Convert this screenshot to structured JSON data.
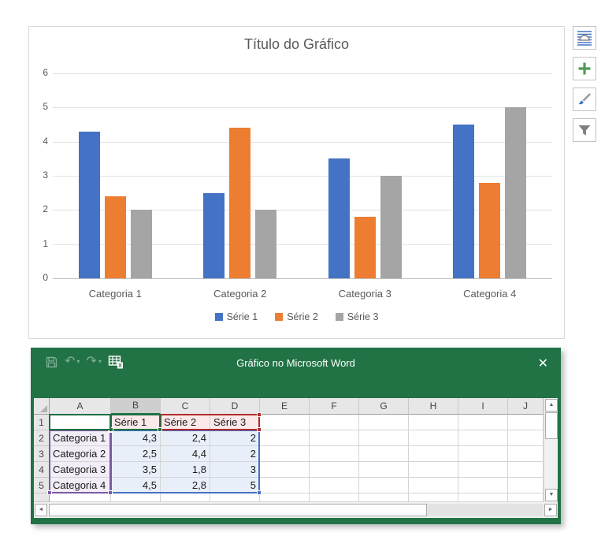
{
  "chart_panel": {
    "title": "Título do Gráfico",
    "legend": [
      {
        "label": "Série 1",
        "color": "#4472C4"
      },
      {
        "label": "Série 2",
        "color": "#ED7D31"
      },
      {
        "label": "Série 3",
        "color": "#A5A5A5"
      }
    ]
  },
  "chart_data": {
    "type": "bar",
    "title": "Título do Gráfico",
    "categories": [
      "Categoria 1",
      "Categoria 2",
      "Categoria 3",
      "Categoria 4"
    ],
    "series": [
      {
        "name": "Série 1",
        "color": "#4472C4",
        "values": [
          4.3,
          2.5,
          3.5,
          4.5
        ]
      },
      {
        "name": "Série 2",
        "color": "#ED7D31",
        "values": [
          2.4,
          4.4,
          1.8,
          2.8
        ]
      },
      {
        "name": "Série 3",
        "color": "#A5A5A5",
        "values": [
          2,
          2,
          3,
          5
        ]
      }
    ],
    "ylim": [
      0,
      6
    ],
    "y_ticks": [
      0,
      1,
      2,
      3,
      4,
      5,
      6
    ],
    "grid": true,
    "legend_position": "bottom"
  },
  "chart_tools": {
    "buttons": [
      {
        "name": "layout-options"
      },
      {
        "name": "add-chart-element"
      },
      {
        "name": "chart-styles"
      },
      {
        "name": "chart-filters"
      }
    ]
  },
  "excel_window": {
    "title": "Gráfico no Microsoft Word",
    "close_label": "✕",
    "toolbar": {
      "undo_glyph": "↶",
      "redo_glyph": "↷",
      "caret_glyph": "▾"
    },
    "sheet": {
      "column_headers": [
        "A",
        "B",
        "C",
        "D",
        "E",
        "F",
        "G",
        "H",
        "I",
        "J"
      ],
      "active_column": "B",
      "row_headers": [
        "1",
        "2",
        "3",
        "4",
        "5"
      ],
      "cells": [
        [
          "",
          "Série 1",
          "Série 2",
          "Série 3",
          "",
          "",
          "",
          "",
          "",
          ""
        ],
        [
          "Categoria 1",
          "4,3",
          "2,4",
          "2",
          "",
          "",
          "",
          "",
          "",
          ""
        ],
        [
          "Categoria 2",
          "2,5",
          "4,4",
          "2",
          "",
          "",
          "",
          "",
          "",
          ""
        ],
        [
          "Categoria 3",
          "3,5",
          "1,8",
          "3",
          "",
          "",
          "",
          "",
          "",
          ""
        ],
        [
          "Categoria 4",
          "4,5",
          "2,8",
          "5",
          "",
          "",
          "",
          "",
          "",
          ""
        ]
      ]
    },
    "scrollbar_glyphs": {
      "up": "▲",
      "down": "▼",
      "left": "◄",
      "right": "►"
    }
  },
  "colors": {
    "excel_green": "#217346",
    "series1": "#4472C4",
    "series2": "#ED7D31",
    "series3": "#A5A5A5",
    "selection_green": "#1E7145",
    "selection_red": "#B02B2B",
    "selection_purple": "#7C5AA5",
    "selection_blue": "#4472C4",
    "fill_series_names": "#FBE9EA",
    "fill_categories": "#F2EDF7",
    "fill_values": "#E9EFF8"
  }
}
